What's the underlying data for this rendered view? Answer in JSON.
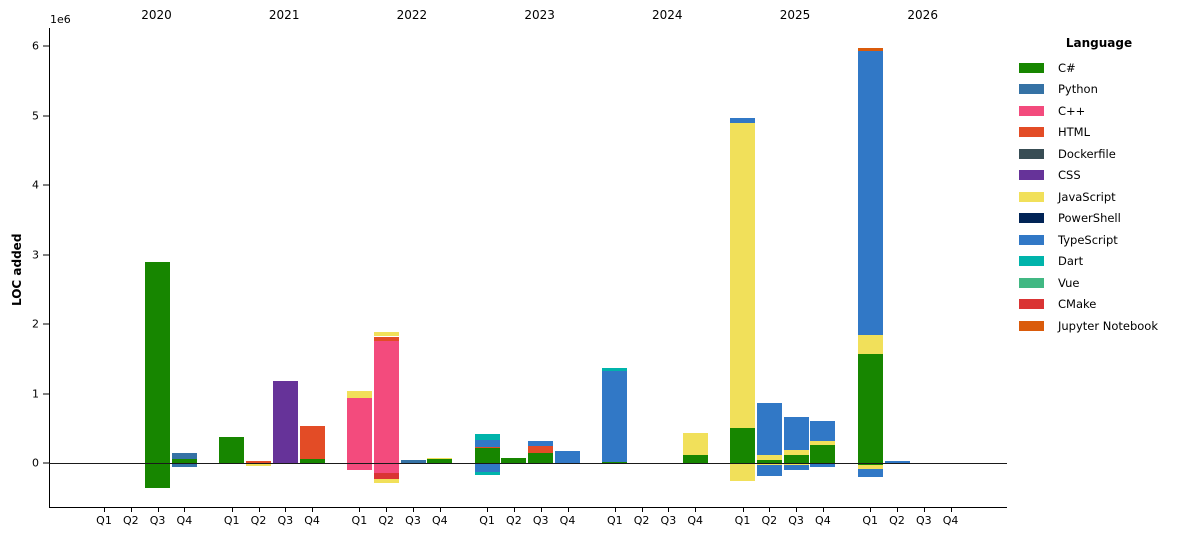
{
  "chart_data": {
    "type": "bar",
    "variant": "stacked-grouped-quarterly",
    "title": "",
    "xlabel": "",
    "ylabel": "LOC added",
    "axis_offset_label": "1e6",
    "value_unit_millions": true,
    "ylim_millions": [
      -0.63,
      6.26
    ],
    "grid": false,
    "ytick_labels": [
      "0",
      "1",
      "2",
      "3",
      "4",
      "5",
      "6"
    ],
    "ytick_values": [
      0,
      1,
      2,
      3,
      4,
      5,
      6
    ],
    "years": [
      "2020",
      "2021",
      "2022",
      "2023",
      "2024",
      "2025",
      "2026"
    ],
    "quarters": [
      "Q1",
      "Q2",
      "Q3",
      "Q4"
    ],
    "legend": {
      "title": "Language",
      "position": "right",
      "entries": [
        {
          "name": "C#",
          "color": "#178600"
        },
        {
          "name": "Python",
          "color": "#3572A5"
        },
        {
          "name": "C++",
          "color": "#F34B7D"
        },
        {
          "name": "HTML",
          "color": "#E34C26"
        },
        {
          "name": "Dockerfile",
          "color": "#384D54"
        },
        {
          "name": "CSS",
          "color": "#663399"
        },
        {
          "name": "JavaScript",
          "color": "#F1E05A"
        },
        {
          "name": "PowerShell",
          "color": "#012456"
        },
        {
          "name": "TypeScript",
          "color": "#3178C6"
        },
        {
          "name": "Dart",
          "color": "#00B4AB"
        },
        {
          "name": "Vue",
          "color": "#41B883"
        },
        {
          "name": "CMake",
          "color": "#DA3434"
        },
        {
          "name": "Jupyter Notebook",
          "color": "#DA5B0B"
        }
      ]
    },
    "bars": [
      {
        "year": "2020",
        "quarter": "Q3",
        "pos": [
          {
            "lang": "C#",
            "value": 2.89
          }
        ],
        "neg": [
          {
            "lang": "C#",
            "value": 0.35
          }
        ]
      },
      {
        "year": "2020",
        "quarter": "Q4",
        "pos": [
          {
            "lang": "C#",
            "value": 0.055
          },
          {
            "lang": "Python",
            "value": 0.085
          }
        ],
        "neg": [
          {
            "lang": "Python",
            "value": 0.05
          }
        ]
      },
      {
        "year": "2021",
        "quarter": "Q1",
        "pos": [
          {
            "lang": "C#",
            "value": 0.37
          }
        ],
        "neg": []
      },
      {
        "year": "2021",
        "quarter": "Q2",
        "pos": [
          {
            "lang": "HTML",
            "value": 0.025
          }
        ],
        "neg": [
          {
            "lang": "JavaScript",
            "value": 0.035
          }
        ]
      },
      {
        "year": "2021",
        "quarter": "Q3",
        "pos": [
          {
            "lang": "CSS",
            "value": 1.18
          }
        ],
        "neg": []
      },
      {
        "year": "2021",
        "quarter": "Q4",
        "pos": [
          {
            "lang": "C#",
            "value": 0.06
          },
          {
            "lang": "HTML",
            "value": 0.47
          }
        ],
        "neg": []
      },
      {
        "year": "2022",
        "quarter": "Q1",
        "pos": [
          {
            "lang": "C++",
            "value": 0.93
          },
          {
            "lang": "JavaScript",
            "value": 0.11
          }
        ],
        "neg": [
          {
            "lang": "C++",
            "value": 0.08
          }
        ]
      },
      {
        "year": "2022",
        "quarter": "Q2",
        "pos": [
          {
            "lang": "C++",
            "value": 1.76
          },
          {
            "lang": "HTML",
            "value": 0.06
          },
          {
            "lang": "JavaScript",
            "value": 0.06
          }
        ],
        "neg": [
          {
            "lang": "C++",
            "value": 0.125
          },
          {
            "lang": "CMake",
            "value": 0.085
          },
          {
            "lang": "JavaScript",
            "value": 0.06
          }
        ]
      },
      {
        "year": "2022",
        "quarter": "Q3",
        "pos": [
          {
            "lang": "Python",
            "value": 0.045
          }
        ],
        "neg": []
      },
      {
        "year": "2022",
        "quarter": "Q4",
        "pos": [
          {
            "lang": "C#",
            "value": 0.06
          },
          {
            "lang": "JavaScript",
            "value": 0.015
          }
        ],
        "neg": []
      },
      {
        "year": "2023",
        "quarter": "Q1",
        "pos": [
          {
            "lang": "C#",
            "value": 0.22
          },
          {
            "lang": "HTML",
            "value": 0.015
          },
          {
            "lang": "TypeScript",
            "value": 0.1
          },
          {
            "lang": "Dart",
            "value": 0.085
          }
        ],
        "neg": [
          {
            "lang": "TypeScript",
            "value": 0.12
          },
          {
            "lang": "Dart",
            "value": 0.04
          }
        ]
      },
      {
        "year": "2023",
        "quarter": "Q2",
        "pos": [
          {
            "lang": "C#",
            "value": 0.07
          }
        ],
        "neg": []
      },
      {
        "year": "2023",
        "quarter": "Q3",
        "pos": [
          {
            "lang": "C#",
            "value": 0.15
          },
          {
            "lang": "HTML",
            "value": 0.09
          },
          {
            "lang": "TypeScript",
            "value": 0.07
          }
        ],
        "neg": []
      },
      {
        "year": "2023",
        "quarter": "Q4",
        "pos": [
          {
            "lang": "TypeScript",
            "value": 0.17
          }
        ],
        "neg": []
      },
      {
        "year": "2024",
        "quarter": "Q1",
        "pos": [
          {
            "lang": "C#",
            "value": 0.02
          },
          {
            "lang": "TypeScript",
            "value": 1.31
          },
          {
            "lang": "Dart",
            "value": 0.04
          }
        ],
        "neg": []
      },
      {
        "year": "2024",
        "quarter": "Q4",
        "pos": [
          {
            "lang": "C#",
            "value": 0.12
          },
          {
            "lang": "JavaScript",
            "value": 0.31
          }
        ],
        "neg": []
      },
      {
        "year": "2025",
        "quarter": "Q1",
        "pos": [
          {
            "lang": "C#",
            "value": 0.5
          },
          {
            "lang": "JavaScript",
            "value": 4.39
          },
          {
            "lang": "TypeScript",
            "value": 0.07
          }
        ],
        "neg": [
          {
            "lang": "JavaScript",
            "value": 0.25
          }
        ]
      },
      {
        "year": "2025",
        "quarter": "Q2",
        "pos": [
          {
            "lang": "C#",
            "value": 0.04
          },
          {
            "lang": "JavaScript",
            "value": 0.08
          },
          {
            "lang": "TypeScript",
            "value": 0.75
          }
        ],
        "neg": [
          {
            "lang": "JavaScript",
            "value": 0.02
          },
          {
            "lang": "TypeScript",
            "value": 0.15
          }
        ]
      },
      {
        "year": "2025",
        "quarter": "Q3",
        "pos": [
          {
            "lang": "C#",
            "value": 0.12
          },
          {
            "lang": "JavaScript",
            "value": 0.07
          },
          {
            "lang": "TypeScript",
            "value": 0.47
          }
        ],
        "neg": [
          {
            "lang": "JavaScript",
            "value": 0.02
          },
          {
            "lang": "TypeScript",
            "value": 0.07
          }
        ]
      },
      {
        "year": "2025",
        "quarter": "Q4",
        "pos": [
          {
            "lang": "C#",
            "value": 0.26
          },
          {
            "lang": "JavaScript",
            "value": 0.06
          },
          {
            "lang": "TypeScript",
            "value": 0.29
          }
        ],
        "neg": [
          {
            "lang": "TypeScript",
            "value": 0.05
          }
        ]
      },
      {
        "year": "2026",
        "quarter": "Q1",
        "pos": [
          {
            "lang": "C#",
            "value": 1.57
          },
          {
            "lang": "JavaScript",
            "value": 0.27
          },
          {
            "lang": "TypeScript",
            "value": 4.09
          },
          {
            "lang": "Jupyter Notebook",
            "value": 0.04
          }
        ],
        "neg": [
          {
            "lang": "C#",
            "value": 0.02
          },
          {
            "lang": "JavaScript",
            "value": 0.05
          },
          {
            "lang": "TypeScript",
            "value": 0.12
          }
        ]
      },
      {
        "year": "2026",
        "quarter": "Q2",
        "pos": [
          {
            "lang": "TypeScript",
            "value": 0.03
          }
        ],
        "neg": []
      }
    ]
  }
}
